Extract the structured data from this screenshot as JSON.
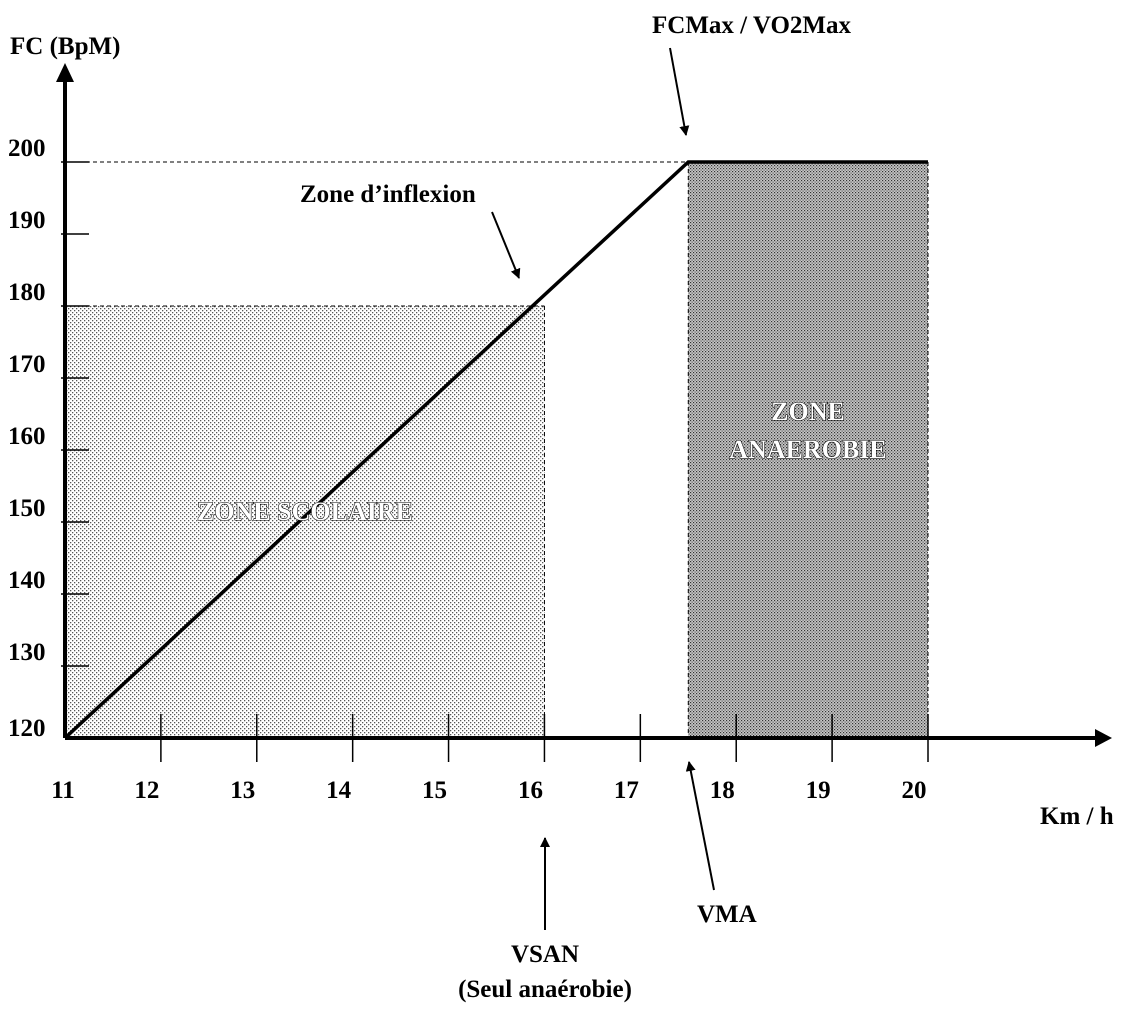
{
  "chart_data": {
    "type": "line",
    "ylabel": "FC (BpM)",
    "xlabel": "Km / h",
    "xlim": [
      11,
      20
    ],
    "ylim": [
      120,
      200
    ],
    "x_ticks": [
      11,
      12,
      13,
      14,
      15,
      16,
      17,
      18,
      19,
      20
    ],
    "y_ticks": [
      120,
      130,
      140,
      150,
      160,
      170,
      180,
      190,
      200
    ],
    "series": [
      {
        "x": [
          11,
          17.5,
          20
        ],
        "y": [
          120,
          200,
          200
        ]
      }
    ],
    "zones": [
      {
        "label": "ZONE SCOLAIRE",
        "x": [
          11,
          16
        ],
        "y": [
          120,
          180
        ]
      },
      {
        "label_lines": [
          "ZONE",
          "ANAEROBIE"
        ],
        "x": [
          17.5,
          20
        ],
        "y": [
          120,
          200
        ]
      }
    ],
    "annotations": [
      {
        "id": "fcmax",
        "text": "FCMax / VO2Max"
      },
      {
        "id": "inflexion",
        "text": "Zone d’inflexion"
      },
      {
        "id": "vma",
        "text": "VMA"
      },
      {
        "id": "vsan",
        "lines": [
          "VSAN",
          "(Seul anaérobie)"
        ]
      }
    ]
  }
}
